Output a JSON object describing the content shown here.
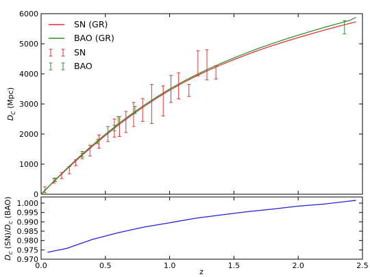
{
  "chart_data": [
    {
      "type": "line",
      "xlabel": "",
      "ylabel": "D_C (Mpc)",
      "ylabel_main": "D",
      "ylabel_sub": "C",
      "ylabel_tail": " (Mpc)",
      "xlim": [
        0,
        2.5
      ],
      "ylim": [
        0,
        6000
      ],
      "xticks": [
        0.0,
        0.5,
        1.0,
        1.5,
        2.0,
        2.5
      ],
      "xtick_labels": [
        "",
        "",
        "",
        "",
        "",
        ""
      ],
      "yticks": [
        0,
        1000,
        2000,
        3000,
        4000,
        5000,
        6000
      ],
      "ytick_labels": [
        "0",
        "1000",
        "2000",
        "3000",
        "4000",
        "5000",
        "6000"
      ],
      "legend_position": "top-left",
      "colors": {
        "sn": "#e03131",
        "bao": "#2f8f2f"
      },
      "series": [
        {
          "name": "SN (GR)",
          "kind": "line",
          "color": "#e03131",
          "x": [
            0,
            0.1,
            0.2,
            0.3,
            0.4,
            0.5,
            0.6,
            0.7,
            0.8,
            0.9,
            1.0,
            1.1,
            1.2,
            1.3,
            1.4,
            1.5,
            1.6,
            1.7,
            1.8,
            1.9,
            2.0,
            2.1,
            2.2,
            2.3,
            2.4,
            2.45
          ],
          "y": [
            0,
            425,
            835,
            1225,
            1595,
            1955,
            2295,
            2615,
            2915,
            3195,
            3455,
            3695,
            3915,
            4115,
            4300,
            4475,
            4640,
            4795,
            4940,
            5075,
            5205,
            5330,
            5450,
            5565,
            5675,
            5730
          ]
        },
        {
          "name": "BAO (GR)",
          "kind": "line",
          "color": "#2f8f2f",
          "x": [
            0,
            0.1,
            0.2,
            0.3,
            0.4,
            0.5,
            0.6,
            0.7,
            0.8,
            0.9,
            1.0,
            1.1,
            1.2,
            1.3,
            1.4,
            1.5,
            1.6,
            1.7,
            1.8,
            1.9,
            2.0,
            2.1,
            2.2,
            2.3,
            2.4,
            2.45
          ],
          "y": [
            0,
            435,
            855,
            1255,
            1635,
            1995,
            2335,
            2655,
            2955,
            3235,
            3495,
            3735,
            3955,
            4160,
            4350,
            4530,
            4700,
            4860,
            5010,
            5150,
            5285,
            5415,
            5540,
            5660,
            5775,
            5880
          ]
        },
        {
          "name": "SN",
          "kind": "errorbar",
          "color": "#e03131",
          "x": [
            0.03,
            0.1,
            0.16,
            0.22,
            0.27,
            0.32,
            0.38,
            0.45,
            0.52,
            0.57,
            0.61,
            0.66,
            0.72,
            0.79,
            0.86,
            0.95,
            1.01,
            1.07,
            1.15,
            1.22,
            1.29,
            1.36
          ],
          "y": [
            150,
            450,
            620,
            800,
            1050,
            1300,
            1450,
            1750,
            2000,
            2200,
            2250,
            2400,
            2650,
            2800,
            3000,
            3100,
            3500,
            3600,
            3450,
            4350,
            4300,
            4050
          ],
          "err": [
            100,
            80,
            100,
            120,
            100,
            120,
            180,
            220,
            250,
            300,
            330,
            350,
            400,
            380,
            650,
            500,
            450,
            430,
            200,
            420,
            500,
            220
          ]
        },
        {
          "name": "BAO",
          "kind": "errorbar",
          "color": "#2f8f2f",
          "x": [
            0.11,
            0.32,
            0.44,
            0.57,
            0.6,
            0.73,
            2.36
          ],
          "y": [
            480,
            1300,
            1750,
            2200,
            2450,
            2800,
            5550
          ],
          "err": [
            60,
            60,
            70,
            90,
            130,
            120,
            220
          ]
        }
      ]
    },
    {
      "type": "line",
      "xlabel": "z",
      "ylabel": "D_C (SN)/D_C (BAO)",
      "ylabel_a": "D",
      "ylabel_a_sub": "C",
      "ylabel_mid": " (SN)/",
      "ylabel_b": "D",
      "ylabel_b_sub": "C",
      "ylabel_tail": " (BAO)",
      "xlim": [
        0,
        2.5
      ],
      "ylim": [
        0.97,
        1.0033
      ],
      "xticks": [
        0.0,
        0.5,
        1.0,
        1.5,
        2.0,
        2.5
      ],
      "xtick_labels": [
        "0.0",
        "0.5",
        "1.0",
        "1.5",
        "2.0",
        "2.5"
      ],
      "yticks": [
        0.97,
        0.975,
        0.98,
        0.985,
        0.99,
        0.995,
        1.0
      ],
      "ytick_labels": [
        "0.970",
        "0.975",
        "0.980",
        "0.985",
        "0.990",
        "0.995",
        "1.000"
      ],
      "series": [
        {
          "kind": "line",
          "color": "#1f1fd8",
          "x": [
            0.05,
            0.2,
            0.4,
            0.6,
            0.8,
            1.0,
            1.2,
            1.4,
            1.6,
            1.8,
            2.0,
            2.2,
            2.45
          ],
          "y": [
            0.9737,
            0.9758,
            0.9806,
            0.9842,
            0.9872,
            0.9895,
            0.9919,
            0.9937,
            0.9954,
            0.9968,
            0.9984,
            0.9995,
            1.0015
          ]
        }
      ]
    }
  ]
}
